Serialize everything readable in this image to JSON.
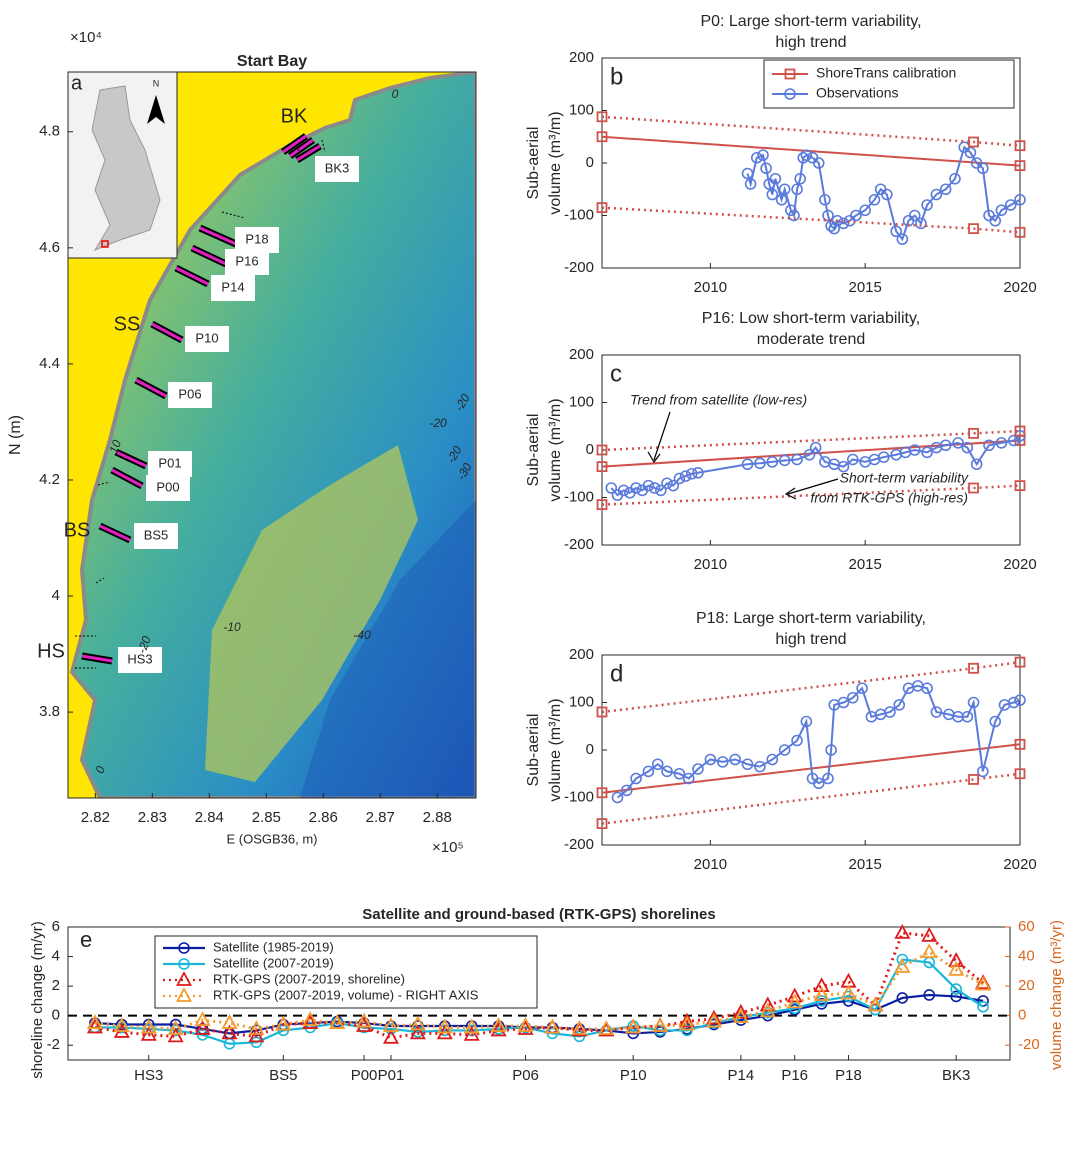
{
  "chart_data": [
    {
      "type": "map",
      "title": "Start Bay",
      "label": "a",
      "xlabel": "E (OSGB36, m)",
      "ylabel": "N (m)",
      "x_multiplier": "×10⁵",
      "y_multiplier": "×10⁴",
      "xlim": [
        2.8152,
        2.8868
      ],
      "xticks": [
        2.82,
        2.83,
        2.84,
        2.85,
        2.86,
        2.87,
        2.88
      ],
      "ylim": [
        3.652,
        4.903
      ],
      "yticks": [
        3.8,
        4,
        4.2,
        4.4,
        4.6,
        4.8
      ],
      "labels": [
        "BK",
        "BK3",
        "P18",
        "P16",
        "P14",
        "SS",
        "P10",
        "P06",
        "P01",
        "P00",
        "BS",
        "BS5",
        "HS",
        "HS3"
      ],
      "contour_labels": [
        "0",
        "10",
        "-10",
        "-20",
        "-40",
        "-20",
        "-20",
        "-20",
        "-30",
        "0"
      ]
    },
    {
      "type": "line",
      "label": "b",
      "title": [
        "P0: Large short-term variability,",
        "high trend"
      ],
      "ylabel": [
        "Sub-aerial",
        "volume (m³/m)"
      ],
      "legend": "upper right",
      "xlim": [
        2006.5,
        2020
      ],
      "xticks": [
        2010,
        2015,
        2020
      ],
      "ylim": [
        -200,
        200
      ],
      "yticks": [
        -200,
        -100,
        0,
        100,
        200
      ],
      "series": [
        {
          "name": "ShoreTrans calibration",
          "color": "#d0504a",
          "line": "solid",
          "marker": "square",
          "x": [
            2006.5,
            2020
          ],
          "values": [
            50,
            -5
          ]
        },
        {
          "name": "Observations",
          "color": "#5a7bdc",
          "line": "solid",
          "marker": "circle",
          "x": [
            2011.2,
            2011.3,
            2011.5,
            2011.7,
            2011.8,
            2011.9,
            2012.0,
            2012.1,
            2012.3,
            2012.4,
            2012.6,
            2012.7,
            2012.8,
            2012.9,
            2013.0,
            2013.1,
            2013.3,
            2013.5,
            2013.7,
            2013.8,
            2013.9,
            2014.0,
            2014.1,
            2014.3,
            2014.5,
            2014.7,
            2015.0,
            2015.3,
            2015.5,
            2015.7,
            2016.0,
            2016.2,
            2016.4,
            2016.6,
            2016.8,
            2017.0,
            2017.3,
            2017.6,
            2017.9,
            2018.2,
            2018.4,
            2018.6,
            2018.8,
            2019.0,
            2019.2,
            2019.4,
            2019.7,
            2020.0
          ],
          "values": [
            -20,
            -40,
            10,
            15,
            -10,
            -40,
            -60,
            -30,
            -70,
            -50,
            -90,
            -100,
            -50,
            -30,
            10,
            15,
            10,
            0,
            -70,
            -100,
            -120,
            -125,
            -110,
            -115,
            -110,
            -100,
            -90,
            -70,
            -50,
            -60,
            -130,
            -145,
            -110,
            -100,
            -115,
            -80,
            -60,
            -50,
            -30,
            30,
            20,
            0,
            -10,
            -100,
            -110,
            -90,
            -80,
            -70
          ]
        },
        {
          "color": "#d0504a",
          "line": "dotted",
          "marker": "square",
          "x": [
            2006.5,
            2018.5,
            2020
          ],
          "values": [
            88,
            40,
            33
          ]
        },
        {
          "color": "#d0504a",
          "line": "dotted",
          "marker": "square",
          "x": [
            2006.5,
            2018.5,
            2020
          ],
          "values": [
            -85,
            -125,
            -132
          ]
        }
      ]
    },
    {
      "type": "line",
      "label": "c",
      "title": [
        "P16: Low short-term variability,",
        "moderate trend"
      ],
      "ylabel": [
        "Sub-aerial",
        "volume (m³/m)"
      ],
      "annotations": [
        "Trend from satellite (low-res)",
        "Short-term variability",
        "from RTK-GPS (high-res)"
      ],
      "xlim": [
        2006.5,
        2020
      ],
      "xticks": [
        2010,
        2015,
        2020
      ],
      "ylim": [
        -200,
        200
      ],
      "yticks": [
        -200,
        -100,
        0,
        100,
        200
      ],
      "series": [
        {
          "color": "#d0504a",
          "line": "solid",
          "marker": "square",
          "x": [
            2006.5,
            2020
          ],
          "values": [
            -35,
            20
          ]
        },
        {
          "color": "#5a7bdc",
          "line": "solid",
          "marker": "circle",
          "x": [
            2006.8,
            2007.0,
            2007.2,
            2007.4,
            2007.6,
            2007.8,
            2008.0,
            2008.2,
            2008.4,
            2008.6,
            2008.8,
            2009.0,
            2009.2,
            2009.4,
            2009.6,
            2011.2,
            2011.6,
            2012.0,
            2012.4,
            2012.8,
            2013.2,
            2013.4,
            2013.7,
            2014.0,
            2014.3,
            2014.6,
            2015.0,
            2015.3,
            2015.6,
            2016.0,
            2016.3,
            2016.6,
            2017.0,
            2017.3,
            2017.6,
            2018.0,
            2018.3,
            2018.6,
            2019.0,
            2019.4,
            2019.8,
            2020.0
          ],
          "values": [
            -80,
            -95,
            -85,
            -90,
            -80,
            -85,
            -75,
            -80,
            -85,
            -70,
            -75,
            -60,
            -55,
            -50,
            -48,
            -30,
            -28,
            -25,
            -22,
            -20,
            -10,
            5,
            -25,
            -30,
            -35,
            -20,
            -25,
            -20,
            -15,
            -10,
            -5,
            0,
            -5,
            5,
            10,
            15,
            5,
            -30,
            10,
            15,
            20,
            30
          ]
        },
        {
          "color": "#d0504a",
          "line": "dotted",
          "marker": "square",
          "x": [
            2006.5,
            2018.5,
            2020
          ],
          "values": [
            0,
            35,
            40
          ]
        },
        {
          "color": "#d0504a",
          "line": "dotted",
          "marker": "square",
          "x": [
            2006.5,
            2018.5,
            2020
          ],
          "values": [
            -115,
            -80,
            -75
          ]
        }
      ]
    },
    {
      "type": "line",
      "label": "d",
      "title": [
        "P18: Large short-term variability,",
        "high trend"
      ],
      "ylabel": [
        "Sub-aerial",
        "volume (m³/m)"
      ],
      "xlim": [
        2006.5,
        2020
      ],
      "xticks": [
        2010,
        2015,
        2020
      ],
      "ylim": [
        -200,
        200
      ],
      "yticks": [
        -200,
        -100,
        0,
        100,
        200
      ],
      "series": [
        {
          "color": "#d0504a",
          "line": "solid",
          "marker": "square",
          "x": [
            2006.5,
            2020
          ],
          "values": [
            -90,
            12
          ]
        },
        {
          "color": "#5a7bdc",
          "line": "solid",
          "marker": "circle",
          "x": [
            2007.0,
            2007.3,
            2007.6,
            2008.0,
            2008.3,
            2008.6,
            2009.0,
            2009.3,
            2009.6,
            2010.0,
            2010.4,
            2010.8,
            2011.2,
            2011.6,
            2012.0,
            2012.4,
            2012.8,
            2013.1,
            2013.3,
            2013.5,
            2013.8,
            2013.9,
            2014.0,
            2014.3,
            2014.6,
            2014.9,
            2015.2,
            2015.5,
            2015.8,
            2016.1,
            2016.4,
            2016.7,
            2017.0,
            2017.3,
            2017.7,
            2018.0,
            2018.3,
            2018.5,
            2018.8,
            2019.2,
            2019.5,
            2019.8,
            2020.0
          ],
          "values": [
            -100,
            -85,
            -60,
            -45,
            -30,
            -45,
            -50,
            -60,
            -40,
            -20,
            -25,
            -20,
            -30,
            -35,
            -20,
            0,
            20,
            60,
            -60,
            -70,
            -60,
            0,
            95,
            100,
            110,
            130,
            70,
            75,
            80,
            95,
            130,
            135,
            130,
            80,
            75,
            70,
            70,
            100,
            -45,
            60,
            95,
            100,
            105
          ]
        },
        {
          "color": "#d0504a",
          "line": "dotted",
          "marker": "square",
          "x": [
            2006.5,
            2018.5,
            2020
          ],
          "values": [
            80,
            172,
            185
          ]
        },
        {
          "color": "#d0504a",
          "line": "dotted",
          "marker": "square",
          "x": [
            2006.5,
            2018.5,
            2020
          ],
          "values": [
            -155,
            -62,
            -50
          ]
        }
      ]
    },
    {
      "type": "profile",
      "label": "e",
      "title": "Satellite and ground-based (RTK-GPS) shorelines",
      "ylabel": "shoreline change (m/yr)",
      "y2label": "volume change (m³/yr)",
      "legend": "upper left",
      "hline": 0,
      "categories": [
        null,
        null,
        "HS3",
        null,
        null,
        null,
        null,
        "BS5",
        null,
        null,
        "P00",
        "P01",
        null,
        null,
        null,
        null,
        "P06",
        null,
        null,
        null,
        "P10",
        null,
        null,
        null,
        "P14",
        null,
        "P16",
        null,
        "P18",
        null,
        null,
        null,
        "BK3",
        null
      ],
      "ylim": [
        -3,
        6
      ],
      "yticks": [
        -2,
        0,
        2,
        4,
        6
      ],
      "y2lim": [
        -30,
        60
      ],
      "y2ticks": [
        -20,
        0,
        20,
        40,
        60
      ],
      "y2color": "#d9661f",
      "series": [
        {
          "name": "Satellite (1985-2019)",
          "color": "#0a1fa0",
          "line": "solid",
          "marker": "circle",
          "values": [
            -0.5,
            -0.6,
            -0.6,
            -0.6,
            -0.9,
            -1.2,
            -1.0,
            -0.6,
            -0.5,
            -0.4,
            -0.5,
            -0.7,
            -0.7,
            -0.7,
            -0.7,
            -0.7,
            -0.8,
            -0.8,
            -0.9,
            -1.0,
            -1.2,
            -1.1,
            -0.9,
            -0.6,
            -0.3,
            0.0,
            0.4,
            0.8,
            1.0,
            0.4,
            1.2,
            1.4,
            1.3,
            1.0
          ]
        },
        {
          "name": "Satellite (2007-2019)",
          "color": "#19b8d8",
          "line": "solid",
          "marker": "circle",
          "values": [
            -0.8,
            -0.8,
            -0.9,
            -1.0,
            -1.3,
            -1.9,
            -1.8,
            -1.0,
            -0.8,
            -0.5,
            -0.8,
            -0.9,
            -1.1,
            -1.0,
            -1.0,
            -0.9,
            -0.8,
            -1.2,
            -1.4,
            -1.0,
            -0.7,
            -1.0,
            -1.0,
            -0.5,
            -0.1,
            0.2,
            0.5,
            1.0,
            1.3,
            0.4,
            3.8,
            3.6,
            1.8,
            0.6
          ]
        },
        {
          "name": "RTK-GPS (2007-2019, shoreline)",
          "color": "#e01a1a",
          "line": "dotted",
          "marker": "triangle",
          "values": [
            -0.8,
            -1.1,
            -1.3,
            -1.4,
            -0.9,
            -1.2,
            -1.4,
            -0.6,
            -0.5,
            -0.5,
            -0.7,
            -1.5,
            -1.2,
            -1.2,
            -1.3,
            -1.0,
            -0.9,
            -0.8,
            -1.0,
            -1.0,
            -0.8,
            -0.7,
            -0.4,
            -0.2,
            0.2,
            0.7,
            1.3,
            2.0,
            2.3,
            0.7,
            5.6,
            5.4,
            3.7,
            2.2
          ]
        },
        {
          "name": "RTK-GPS (2007-2019, volume) - RIGHT AXIS",
          "color": "#f59a2c",
          "line": "dotted",
          "marker": "triangle",
          "axis": "y2",
          "values": [
            -5,
            -7,
            -8,
            -9,
            -3,
            -5,
            -9,
            -6,
            -3,
            -5,
            -4,
            -7,
            -6,
            -8,
            -8,
            -7,
            -7,
            -8,
            -9,
            -9,
            -8,
            -7,
            -6,
            -4,
            -1,
            3,
            9,
            14,
            15,
            7,
            33,
            43,
            31,
            21
          ]
        }
      ]
    }
  ]
}
